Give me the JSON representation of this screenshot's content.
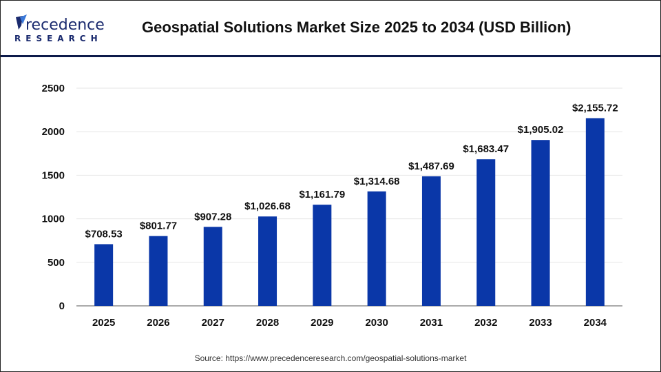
{
  "logo": {
    "brand": "Precedence",
    "sub": "RESEARCH"
  },
  "source": "Source: https://www.precedenceresearch.com/geospatial-solutions-market",
  "chart_data": {
    "type": "bar",
    "title": "Geospatial Solutions Market Size 2025 to 2034 (USD Billion)",
    "categories": [
      "2025",
      "2026",
      "2027",
      "2028",
      "2029",
      "2030",
      "2031",
      "2032",
      "2033",
      "2034"
    ],
    "values": [
      708.53,
      801.77,
      907.28,
      1026.68,
      1161.79,
      1314.68,
      1487.69,
      1683.47,
      1905.02,
      2155.72
    ],
    "data_labels": [
      "$708.53",
      "$801.77",
      "$907.28",
      "$1,026.68",
      "$1,161.79",
      "$1,314.68",
      "$1,487.69",
      "$1,683.47",
      "$1,905.02",
      "$2,155.72"
    ],
    "yticks": [
      0,
      500,
      1000,
      1500,
      2000,
      2500
    ],
    "ylim": [
      0,
      2500
    ],
    "grid": true,
    "bar_color": "#0a37a8"
  }
}
